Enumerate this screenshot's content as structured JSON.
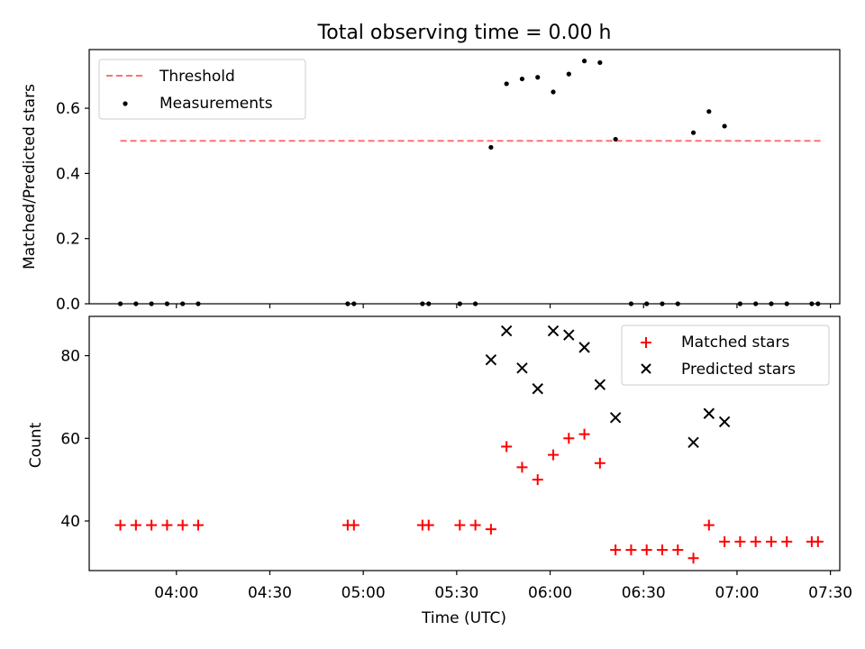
{
  "title": "Total observing time = 0.00 h",
  "colors": {
    "threshold": "#ff7070",
    "measurements": "#000000",
    "matched": "#ff0000",
    "predicted": "#000000"
  },
  "chart_data": [
    {
      "type": "scatter",
      "ylabel": "Matched/Predicted stars",
      "ylim": [
        0.0,
        0.78
      ],
      "yticks": [
        0.0,
        0.2,
        0.4,
        0.6
      ],
      "ytick_labels": [
        "0.0",
        "0.2",
        "0.4",
        "0.6"
      ],
      "xlim": [
        "03:32",
        "07:33"
      ],
      "grid": false,
      "legend_position": "top-left",
      "threshold": {
        "name": "Threshold",
        "value": 0.5,
        "x": [
          "03:42",
          "07:27"
        ]
      },
      "series": [
        {
          "name": "Measurements",
          "x": [
            "03:42",
            "03:47",
            "03:52",
            "03:57",
            "04:02",
            "04:07",
            "04:55",
            "04:57",
            "05:19",
            "05:21",
            "05:31",
            "05:36",
            "05:41",
            "05:46",
            "05:51",
            "05:56",
            "06:01",
            "06:06",
            "06:11",
            "06:16",
            "06:21",
            "06:26",
            "06:31",
            "06:36",
            "06:41",
            "06:46",
            "06:51",
            "06:56",
            "07:01",
            "07:06",
            "07:11",
            "07:16",
            "07:24",
            "07:26"
          ],
          "y": [
            0.0,
            0.0,
            0.0,
            0.0,
            0.0,
            0.0,
            0.0,
            0.0,
            0.0,
            0.0,
            0.0,
            0.0,
            0.48,
            0.675,
            0.69,
            0.695,
            0.65,
            0.705,
            0.745,
            0.74,
            0.505,
            0.0,
            0.0,
            0.0,
            0.0,
            0.525,
            0.59,
            0.545,
            0.0,
            0.0,
            0.0,
            0.0,
            0.0,
            0.0
          ]
        }
      ]
    },
    {
      "type": "scatter",
      "xlabel": "Time (UTC)",
      "ylabel": "Count",
      "ylim": [
        28.0,
        89.5
      ],
      "yticks": [
        40,
        60,
        80
      ],
      "ytick_labels": [
        "40",
        "60",
        "80"
      ],
      "xlim": [
        "03:32",
        "07:33"
      ],
      "xticks": [
        "04:00",
        "04:30",
        "05:00",
        "05:30",
        "06:00",
        "06:30",
        "07:00",
        "07:30"
      ],
      "grid": false,
      "legend_position": "top-right",
      "series": [
        {
          "name": "Matched stars",
          "marker": "plus",
          "x": [
            "03:42",
            "03:47",
            "03:52",
            "03:57",
            "04:02",
            "04:07",
            "04:55",
            "04:57",
            "05:19",
            "05:21",
            "05:31",
            "05:36",
            "05:41",
            "05:46",
            "05:51",
            "05:56",
            "06:01",
            "06:06",
            "06:11",
            "06:16",
            "06:21",
            "06:26",
            "06:31",
            "06:36",
            "06:41",
            "06:46",
            "06:51",
            "06:56",
            "07:01",
            "07:06",
            "07:11",
            "07:16",
            "07:24",
            "07:26"
          ],
          "y": [
            39,
            39,
            39,
            39,
            39,
            39,
            39,
            39,
            39,
            39,
            39,
            39,
            38,
            58,
            53,
            50,
            56,
            60,
            61,
            54,
            33,
            33,
            33,
            33,
            33,
            31,
            39,
            35,
            35,
            35,
            35,
            35,
            35,
            35
          ]
        },
        {
          "name": "Predicted stars",
          "marker": "x",
          "x": [
            "05:41",
            "05:46",
            "05:51",
            "05:56",
            "06:01",
            "06:06",
            "06:11",
            "06:16",
            "06:21",
            "06:46",
            "06:51",
            "06:56"
          ],
          "y": [
            79,
            86,
            77,
            72,
            86,
            85,
            82,
            73,
            65,
            59,
            66,
            64
          ]
        }
      ]
    }
  ]
}
